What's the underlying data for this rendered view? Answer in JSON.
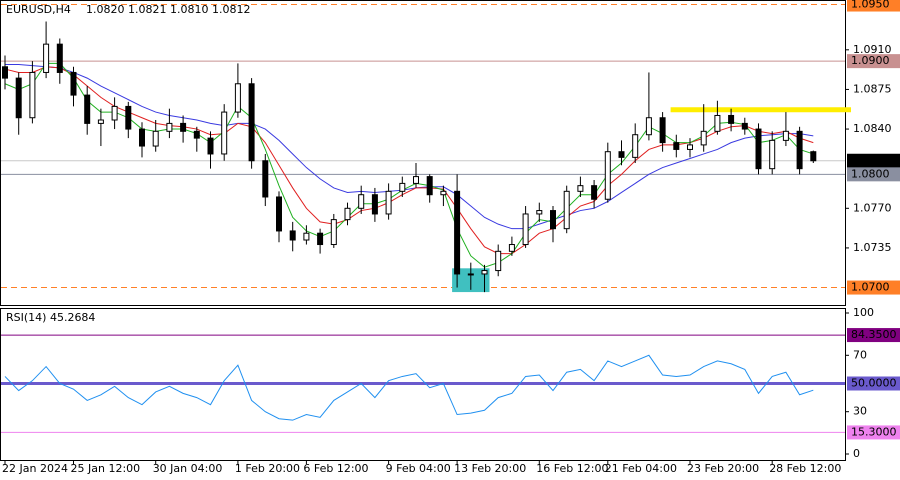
{
  "chart_data": [
    {
      "type": "candlestick",
      "title": "EURUSD,H4",
      "subtitle": "1.0820 1.0821 1.0810 1.0812",
      "categories": [
        "22 Jan 2024",
        null,
        null,
        null,
        null,
        "25 Jan 12:00",
        null,
        null,
        null,
        null,
        null,
        "30 Jan 04:00",
        null,
        null,
        null,
        null,
        null,
        "1 Feb 20:00",
        null,
        null,
        null,
        null,
        "6 Feb 12:00",
        null,
        null,
        null,
        null,
        null,
        "9 Feb 04:00",
        null,
        null,
        null,
        null,
        "13 Feb 20:00",
        null,
        null,
        null,
        null,
        null,
        "16 Feb 12:00",
        null,
        null,
        null,
        null,
        "21 Feb 04:00",
        null,
        null,
        null,
        null,
        null,
        "23 Feb 20:00",
        null,
        null,
        null,
        null,
        null,
        "28 Feb 12:00",
        null,
        null,
        null
      ],
      "open": [
        1.0895,
        1.0885,
        1.085,
        1.089,
        1.0915,
        1.089,
        1.087,
        1.0845,
        1.0848,
        1.086,
        1.084,
        1.0825,
        1.0838,
        1.0845,
        1.0838,
        1.0832,
        1.0818,
        1.0855,
        1.088,
        1.0812,
        1.078,
        1.075,
        1.0742,
        1.0748,
        1.0738,
        1.076,
        1.077,
        1.0782,
        1.0765,
        1.0785,
        1.0792,
        1.0798,
        1.0782,
        1.0785,
        1.0712,
        1.0712,
        1.0715,
        1.0732,
        1.0738,
        1.0765,
        1.0768,
        1.0752,
        1.0785,
        1.079,
        1.0778,
        1.082,
        1.0815,
        1.0835,
        1.085,
        1.0828,
        1.0822,
        1.0826,
        1.0838,
        1.0852,
        1.0845,
        1.084,
        1.0805,
        1.083,
        1.0838,
        1.082
      ],
      "high": [
        1.0905,
        1.089,
        1.09,
        1.0935,
        1.092,
        1.0895,
        1.0878,
        1.0858,
        1.0868,
        1.0864,
        1.0846,
        1.0848,
        1.0858,
        1.0852,
        1.0842,
        1.0838,
        1.0862,
        1.0898,
        1.0885,
        1.0818,
        1.0785,
        1.0758,
        1.0755,
        1.0752,
        1.0765,
        1.0775,
        1.079,
        1.0788,
        1.0792,
        1.0798,
        1.081,
        1.08,
        1.079,
        1.08,
        1.0722,
        1.072,
        1.0738,
        1.0745,
        1.0772,
        1.0775,
        1.0772,
        1.079,
        1.0798,
        1.0795,
        1.0828,
        1.083,
        1.0845,
        1.089,
        1.0855,
        1.0835,
        1.0832,
        1.0862,
        1.0865,
        1.0858,
        1.085,
        1.0845,
        1.0838,
        1.0855,
        1.0842,
        1.0821
      ],
      "low": [
        1.0875,
        1.0835,
        1.0845,
        1.0885,
        1.088,
        1.086,
        1.0835,
        1.0825,
        1.084,
        1.0832,
        1.0815,
        1.082,
        1.0832,
        1.0828,
        1.082,
        1.0805,
        1.0812,
        1.085,
        1.0805,
        1.0772,
        1.074,
        1.0732,
        1.0738,
        1.073,
        1.0735,
        1.0755,
        1.0765,
        1.0758,
        1.076,
        1.078,
        1.0788,
        1.0775,
        1.0772,
        1.07,
        1.0698,
        1.0696,
        1.071,
        1.0728,
        1.0735,
        1.0758,
        1.074,
        1.0748,
        1.078,
        1.077,
        1.0775,
        1.0808,
        1.081,
        1.083,
        1.082,
        1.0815,
        1.0815,
        1.082,
        1.0835,
        1.0838,
        1.0835,
        1.08,
        1.08,
        1.0825,
        1.08,
        1.081
      ],
      "close": [
        1.0885,
        1.085,
        1.089,
        1.0915,
        1.089,
        1.087,
        1.0845,
        1.0848,
        1.086,
        1.084,
        1.0825,
        1.0838,
        1.0845,
        1.0838,
        1.0832,
        1.0818,
        1.0855,
        1.088,
        1.0812,
        1.078,
        1.075,
        1.0742,
        1.0748,
        1.0738,
        1.076,
        1.077,
        1.0782,
        1.0765,
        1.0785,
        1.0792,
        1.0798,
        1.0782,
        1.0785,
        1.0712,
        1.0712,
        1.0715,
        1.0732,
        1.0738,
        1.0765,
        1.0768,
        1.0752,
        1.0785,
        1.079,
        1.0778,
        1.082,
        1.0815,
        1.0835,
        1.085,
        1.0828,
        1.0822,
        1.0826,
        1.0838,
        1.0852,
        1.0845,
        1.084,
        1.0805,
        1.083,
        1.0838,
        1.0805,
        1.0812
      ],
      "series": [
        {
          "color": "#3a3ae0",
          "values": [
            1.0897,
            1.0897,
            1.0896,
            1.0895,
            1.0894,
            1.089,
            1.0885,
            1.0878,
            1.0872,
            1.0866,
            1.086,
            1.0855,
            1.0852,
            1.085,
            1.0848,
            1.0845,
            1.0843,
            1.0845,
            1.0845,
            1.084,
            1.083,
            1.0818,
            1.0806,
            1.0796,
            1.0788,
            1.0784,
            1.0785,
            1.0784,
            1.0785,
            1.0786,
            1.0788,
            1.0789,
            1.0789,
            1.0782,
            1.0772,
            1.0762,
            1.0756,
            1.0752,
            1.0752,
            1.0756,
            1.076,
            1.0764,
            1.0768,
            1.077,
            1.0776,
            1.0784,
            1.0792,
            1.08,
            1.0806,
            1.081,
            1.0814,
            1.0818,
            1.0822,
            1.0828,
            1.0832,
            1.0834,
            1.0835,
            1.0836,
            1.0836,
            1.0834
          ]
        },
        {
          "color": "#e02020",
          "values": [
            1.0893,
            1.089,
            1.089,
            1.0895,
            1.0894,
            1.0888,
            1.0878,
            1.0868,
            1.086,
            1.0855,
            1.085,
            1.0845,
            1.0843,
            1.0842,
            1.084,
            1.0835,
            1.0836,
            1.0845,
            1.0842,
            1.0828,
            1.0808,
            1.0788,
            1.077,
            1.0758,
            1.0756,
            1.076,
            1.0768,
            1.077,
            1.0775,
            1.0782,
            1.0788,
            1.0788,
            1.0787,
            1.077,
            1.0752,
            1.0736,
            1.073,
            1.073,
            1.0738,
            1.0748,
            1.0752,
            1.0762,
            1.0772,
            1.0776,
            1.079,
            1.08,
            1.0812,
            1.0822,
            1.0826,
            1.0826,
            1.0828,
            1.0832,
            1.0838,
            1.0842,
            1.0843,
            1.0838,
            1.0836,
            1.0838,
            1.0832,
            1.0828
          ]
        },
        {
          "color": "#20b020",
          "values": [
            1.088,
            1.0875,
            1.088,
            1.0898,
            1.0898,
            1.0885,
            1.0865,
            1.0855,
            1.0855,
            1.085,
            1.084,
            1.0838,
            1.084,
            1.084,
            1.0836,
            1.0828,
            1.0838,
            1.086,
            1.085,
            1.0822,
            1.079,
            1.0762,
            1.075,
            1.0745,
            1.075,
            1.0762,
            1.0774,
            1.0774,
            1.0778,
            1.0786,
            1.0792,
            1.079,
            1.0786,
            1.0752,
            1.0728,
            1.0718,
            1.0722,
            1.073,
            1.0748,
            1.076,
            1.0758,
            1.077,
            1.0782,
            1.0782,
            1.08,
            1.081,
            1.0825,
            1.0842,
            1.0836,
            1.0828,
            1.0828,
            1.0834,
            1.0845,
            1.0846,
            1.0844,
            1.0828,
            1.083,
            1.0835,
            1.0822,
            1.0818
          ]
        }
      ],
      "ylim": [
        1.0689,
        1.0954
      ],
      "yticks": [
        {
          "value": 1.091,
          "label": "1.0910"
        },
        1.0875,
        {
          "value": 1.084,
          "label": "1.0840"
        },
        {
          "value": 1.077,
          "label": "1.0770"
        },
        1.0735
      ],
      "levels": [
        {
          "value": 1.095,
          "label": "1.0950",
          "color": "#ff7f27",
          "dashed": true
        },
        {
          "value": 1.09,
          "label": "1.0900",
          "color": "#c89090",
          "dashed": false
        },
        {
          "value": 1.0812,
          "label": "1.0812",
          "color": "#c8c8c8",
          "dashed": false
        },
        {
          "value": 1.08,
          "label": "1.0800",
          "color": "#8a8fa0",
          "dashed": false
        },
        {
          "value": 1.07,
          "label": "1.0700",
          "color": "#ff7f27",
          "dashed": true
        }
      ],
      "resistance": {
        "value": 1.0857,
        "color": "#ffee00"
      },
      "zone": {
        "values": [
          1.0717,
          1.0696
        ],
        "color": "#40c0c0"
      }
    },
    {
      "type": "line",
      "title": "RSI(14) 45.2684",
      "color": "#2090f0",
      "values": [
        55,
        45,
        52,
        62,
        50,
        46,
        38,
        42,
        48,
        40,
        35,
        44,
        48,
        43,
        40,
        35,
        52,
        63,
        38,
        30,
        25,
        24,
        28,
        26,
        38,
        44,
        50,
        40,
        52,
        55,
        57,
        47,
        50,
        28,
        29,
        31,
        40,
        43,
        55,
        56,
        45,
        58,
        60,
        52,
        66,
        62,
        66,
        70,
        56,
        55,
        56,
        62,
        66,
        64,
        60,
        43,
        55,
        58,
        42,
        45.2684
      ],
      "ylim": [
        0,
        100
      ],
      "yticks": [
        100,
        70,
        30,
        0
      ],
      "levels": [
        {
          "value": 84.35,
          "label": "84.3500",
          "color": "#800080"
        },
        {
          "value": 50,
          "label": "50.0000",
          "color": "#6a5acd"
        },
        {
          "value": 15.3,
          "label": "15.3000",
          "color": "#ee82ee"
        }
      ]
    }
  ]
}
